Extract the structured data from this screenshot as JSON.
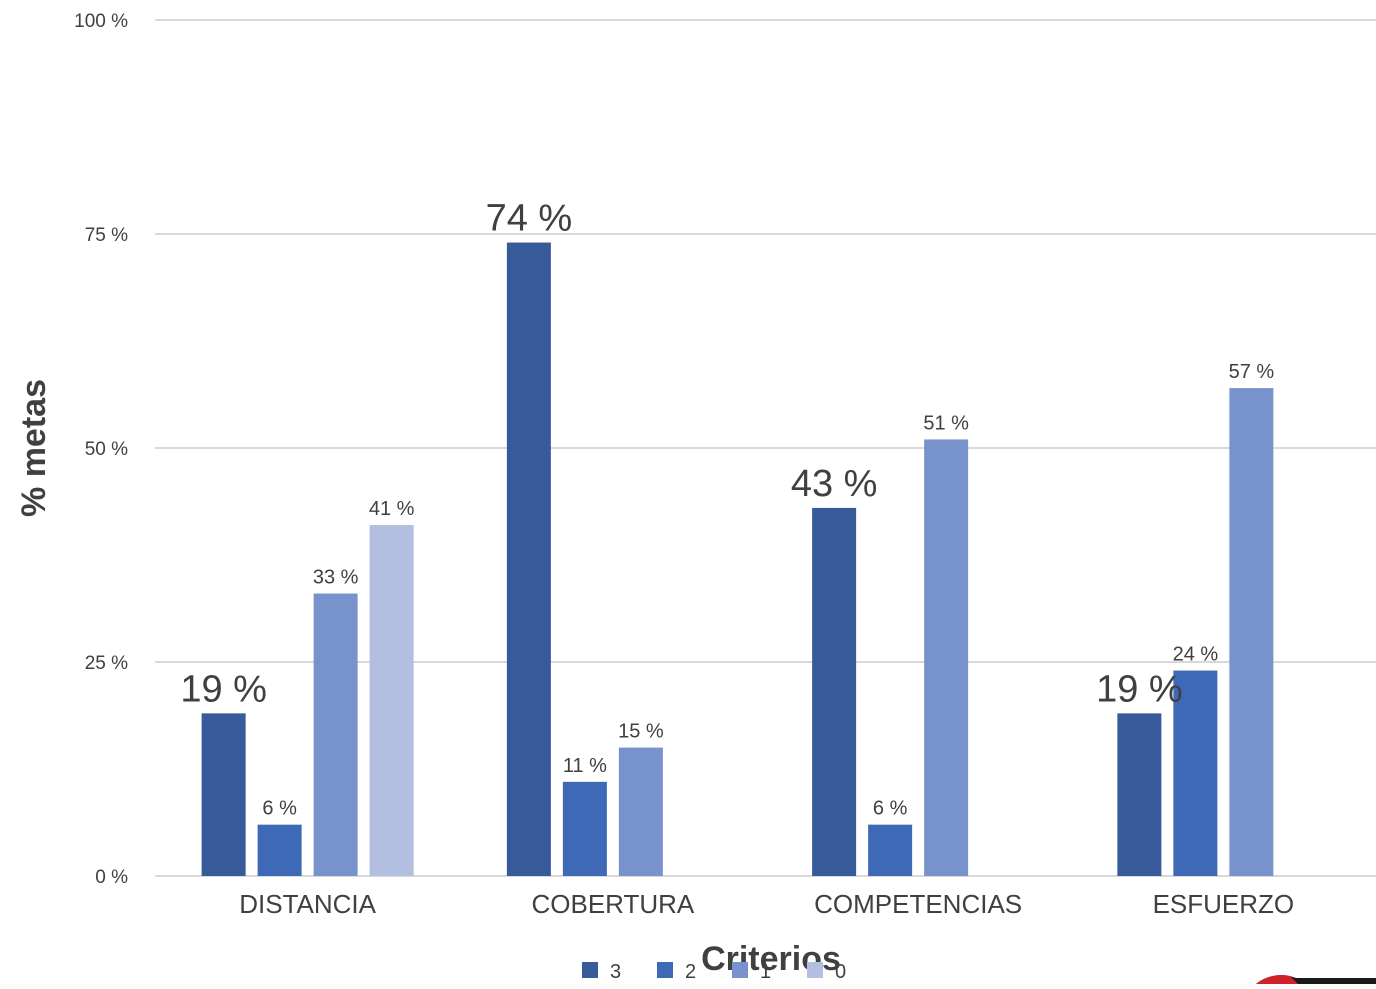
{
  "chart_data": {
    "type": "bar",
    "title": "",
    "xlabel": "Criterios",
    "ylabel": "% metas",
    "ylim": [
      0,
      100
    ],
    "yticks": [
      0,
      25,
      50,
      75,
      100
    ],
    "ytick_labels": [
      "0 %",
      "25 %",
      "50 %",
      "75 %",
      "100 %"
    ],
    "grid": true,
    "legend_position": "bottom",
    "categories": [
      "DISTANCIA",
      "COBERTURA",
      "COMPETENCIAS",
      "ESFUERZO"
    ],
    "series": [
      {
        "name": "3",
        "color": "#365A9A",
        "values": [
          19,
          74,
          43,
          19
        ],
        "labels": [
          "19 %",
          "74 %",
          "43 %",
          "19 %"
        ]
      },
      {
        "name": "2",
        "color": "#3E69B6",
        "values": [
          6,
          11,
          6,
          24
        ],
        "labels": [
          "6 %",
          "11 %",
          "6 %",
          "24 %"
        ]
      },
      {
        "name": "1",
        "color": "#7892CC",
        "values": [
          33,
          15,
          51,
          57
        ],
        "labels": [
          "33 %",
          "15 %",
          "51 %",
          "57 %"
        ]
      },
      {
        "name": "0",
        "color": "#B3BFE0",
        "values": [
          41,
          null,
          null,
          null
        ],
        "labels": [
          "41 %",
          "",
          "",
          ""
        ]
      }
    ]
  }
}
